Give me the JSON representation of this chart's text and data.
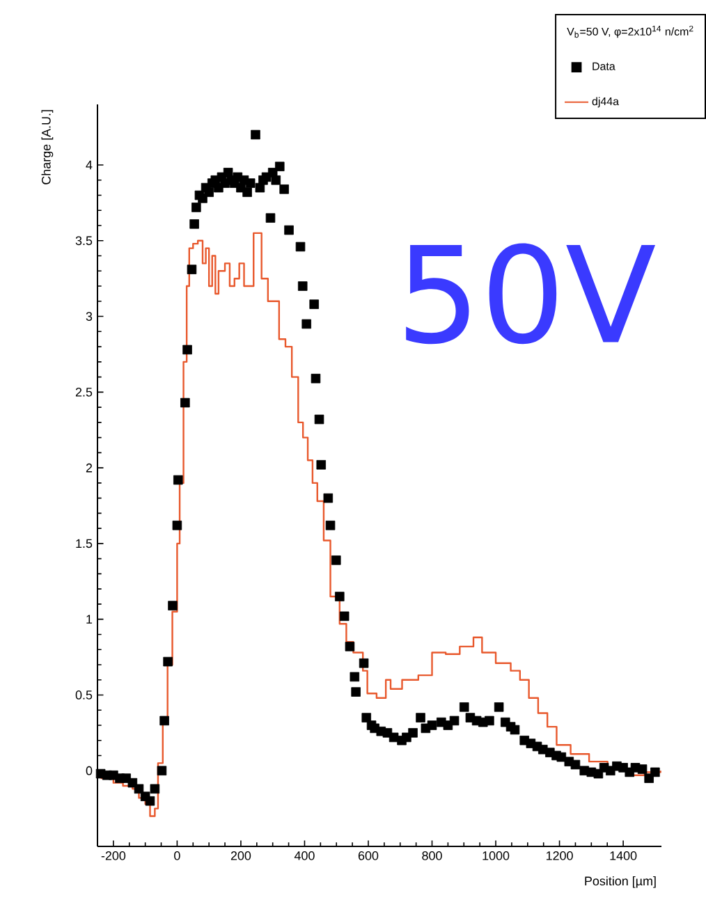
{
  "chart_data": {
    "type": "scatter",
    "xlabel": "Position [µm]",
    "ylabel": "Charge [A.U.]",
    "legend_title": "V$_{b}$=50 V, φ=2x10$^{14}$ n/cm$^{2}$",
    "legend": "top right",
    "annotations": [
      "50V"
    ],
    "xlim": [
      -250,
      1520
    ],
    "ylim": [
      -0.5,
      4.4
    ],
    "xticks": [
      -200,
      0,
      200,
      400,
      600,
      800,
      1000,
      1200,
      1400
    ],
    "yticks": [
      0,
      0.5,
      1,
      1.5,
      2,
      2.5,
      3,
      3.5,
      4
    ],
    "series": [
      {
        "name": "Data",
        "marker": "square",
        "color": "#000000",
        "x": [
          -240,
          -220,
          -200,
          -180,
          -160,
          -140,
          -120,
          -100,
          -85,
          -70,
          -48,
          -40,
          -29,
          -14,
          0,
          3,
          25,
          32,
          46,
          54,
          60,
          70,
          80,
          90,
          100,
          110,
          120,
          130,
          140,
          150,
          160,
          170,
          180,
          190,
          200,
          210,
          220,
          230,
          246,
          260,
          270,
          280,
          293,
          300,
          310,
          322,
          336,
          351,
          387,
          394,
          406,
          430,
          435,
          446,
          452,
          474,
          481,
          499,
          510,
          525,
          542,
          557,
          561,
          586,
          594,
          610,
          620,
          640,
          660,
          680,
          705,
          720,
          740,
          764,
          780,
          800,
          829,
          850,
          870,
          901,
          920,
          940,
          960,
          980,
          1010,
          1030,
          1047,
          1060,
          1090,
          1110,
          1130,
          1148,
          1170,
          1190,
          1206,
          1230,
          1250,
          1278,
          1300,
          1322,
          1340,
          1360,
          1380,
          1400,
          1420,
          1438,
          1460,
          1481,
          1500
        ],
        "values": [
          -0.02,
          -0.03,
          -0.03,
          -0.05,
          -0.05,
          -0.08,
          -0.12,
          -0.17,
          -0.2,
          -0.12,
          0,
          0.33,
          0.72,
          1.09,
          1.62,
          1.92,
          2.43,
          2.78,
          3.31,
          3.61,
          3.72,
          3.8,
          3.78,
          3.85,
          3.82,
          3.88,
          3.9,
          3.85,
          3.92,
          3.88,
          3.95,
          3.9,
          3.88,
          3.92,
          3.85,
          3.9,
          3.82,
          3.88,
          4.2,
          3.85,
          3.9,
          3.92,
          3.65,
          3.95,
          3.9,
          3.99,
          3.84,
          3.57,
          3.46,
          3.2,
          2.95,
          3.08,
          2.59,
          2.32,
          2.02,
          1.8,
          1.62,
          1.39,
          1.15,
          1.02,
          0.82,
          0.62,
          0.52,
          0.71,
          0.35,
          0.3,
          0.28,
          0.26,
          0.25,
          0.22,
          0.2,
          0.22,
          0.25,
          0.35,
          0.28,
          0.3,
          0.32,
          0.3,
          0.33,
          0.42,
          0.35,
          0.33,
          0.32,
          0.33,
          0.42,
          0.32,
          0.29,
          0.27,
          0.2,
          0.18,
          0.16,
          0.14,
          0.12,
          0.1,
          0.09,
          0.06,
          0.04,
          0,
          -0.01,
          -0.02,
          0.02,
          0,
          0.03,
          0.02,
          -0.01,
          0.02,
          0.01,
          -0.05,
          -0.01
        ]
      },
      {
        "name": "dj44a",
        "type": "step",
        "color": "#e8582c",
        "x": [
          -240,
          -200,
          -170,
          -140,
          -120,
          -100,
          -85,
          -70,
          -60,
          -45,
          -30,
          -15,
          0,
          8,
          20,
          30,
          38,
          50,
          65,
          80,
          90,
          100,
          110,
          120,
          130,
          150,
          165,
          180,
          195,
          210,
          225,
          240,
          255,
          265,
          285,
          300,
          320,
          340,
          360,
          380,
          395,
          410,
          425,
          440,
          460,
          481,
          510,
          531,
          553,
          583,
          597,
          626,
          655,
          670,
          706,
          757,
          800,
          843,
          887,
          930,
          957,
          1000,
          1047,
          1076,
          1104,
          1133,
          1162,
          1191,
          1235,
          1293,
          1351,
          1409,
          1467,
          1517
        ],
        "values": [
          -0.05,
          -0.08,
          -0.1,
          -0.12,
          -0.18,
          -0.22,
          -0.3,
          -0.25,
          0.05,
          0.35,
          0.7,
          1.05,
          1.5,
          1.9,
          2.7,
          3.2,
          3.45,
          3.48,
          3.5,
          3.35,
          3.45,
          3.2,
          3.4,
          3.15,
          3.3,
          3.35,
          3.2,
          3.25,
          3.35,
          3.2,
          3.2,
          3.55,
          3.55,
          3.25,
          3.1,
          3.1,
          2.85,
          2.8,
          2.6,
          2.3,
          2.2,
          2.05,
          1.9,
          1.78,
          1.52,
          1.15,
          0.97,
          0.85,
          0.78,
          0.66,
          0.51,
          0.48,
          0.6,
          0.54,
          0.6,
          0.63,
          0.78,
          0.77,
          0.82,
          0.88,
          0.78,
          0.71,
          0.66,
          0.6,
          0.48,
          0.38,
          0.29,
          0.17,
          0.11,
          0.06,
          0.02,
          -0.03,
          -0.01,
          0
        ]
      }
    ]
  }
}
